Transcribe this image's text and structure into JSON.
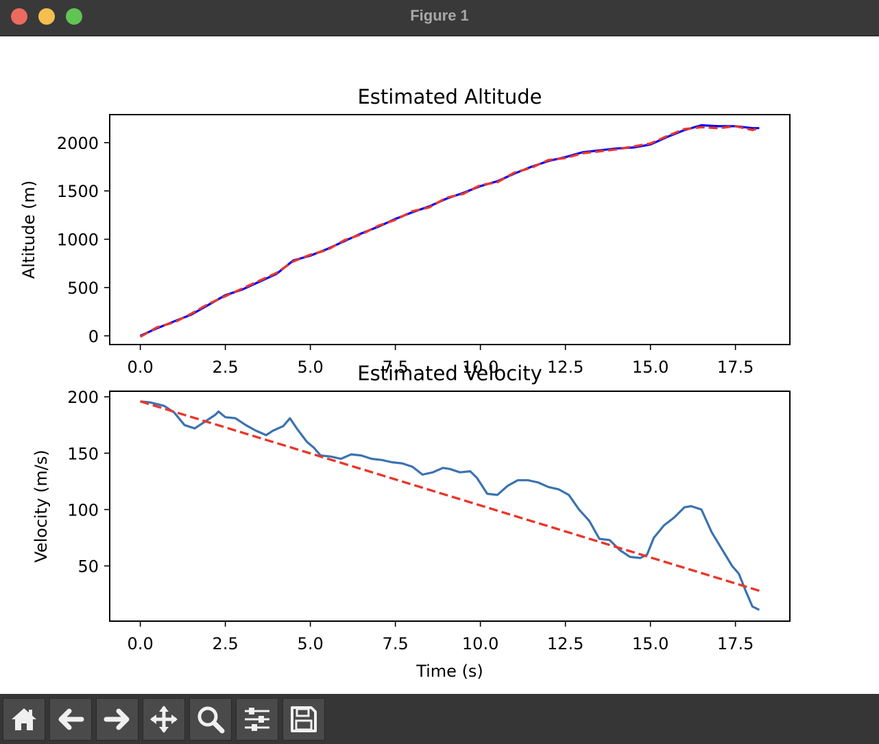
{
  "window": {
    "title": "Figure 1"
  },
  "toolbar": {
    "buttons": [
      {
        "icon": "home-icon"
      },
      {
        "icon": "back-arrow-icon"
      },
      {
        "icon": "forward-arrow-icon"
      },
      {
        "icon": "pan-move-icon"
      },
      {
        "icon": "zoom-magnifier-icon"
      },
      {
        "icon": "configure-subplots-icon"
      },
      {
        "icon": "save-floppy-icon"
      }
    ]
  },
  "colors": {
    "estimate": "#0000ff",
    "reference": "#e8372a",
    "velocity": "#3a72b0"
  },
  "chart_data": [
    {
      "type": "line",
      "title": "Estimated Altitude",
      "xlabel": "",
      "ylabel": "Altitude (m)",
      "xlim": [
        -0.9,
        19.1
      ],
      "ylim": [
        -90,
        2290
      ],
      "xticks": [
        "0.0",
        "2.5",
        "5.0",
        "7.5",
        "10.0",
        "12.5",
        "15.0",
        "17.5"
      ],
      "yticks": [
        "0",
        "500",
        "1000",
        "1500",
        "2000"
      ],
      "xtick_values": [
        0,
        2.5,
        5,
        7.5,
        10,
        12.5,
        15,
        17.5
      ],
      "ytick_values": [
        0,
        500,
        1000,
        1500,
        2000
      ],
      "series": [
        {
          "style": "solid",
          "color": "#0000ff",
          "x": [
            0,
            0.5,
            1,
            1.5,
            2,
            2.5,
            3,
            3.5,
            4,
            4.5,
            5,
            5.5,
            6,
            6.5,
            7,
            7.5,
            8,
            8.5,
            9,
            9.5,
            10,
            10.5,
            11,
            11.5,
            12,
            12.5,
            13,
            13.5,
            14,
            14.5,
            15,
            15.5,
            16,
            16.5,
            17,
            17.5,
            18,
            18.2
          ],
          "y": [
            0,
            80,
            150,
            220,
            320,
            420,
            480,
            560,
            640,
            780,
            830,
            900,
            980,
            1060,
            1130,
            1210,
            1280,
            1340,
            1420,
            1480,
            1550,
            1600,
            1680,
            1750,
            1810,
            1850,
            1900,
            1920,
            1940,
            1950,
            1980,
            2060,
            2130,
            2180,
            2170,
            2170,
            2150,
            2150
          ]
        },
        {
          "style": "dashed",
          "color": "#e8372a",
          "x": [
            0,
            0.5,
            1,
            1.5,
            2,
            2.5,
            3,
            3.5,
            4,
            4.5,
            5,
            5.5,
            6,
            6.5,
            7,
            7.5,
            8,
            8.5,
            9,
            9.5,
            10,
            10.5,
            11,
            11.5,
            12,
            12.5,
            13,
            13.5,
            14,
            14.5,
            15,
            15.5,
            16,
            16.5,
            17,
            17.5,
            18,
            18.2
          ],
          "y": [
            -10,
            90,
            140,
            230,
            330,
            410,
            490,
            570,
            650,
            770,
            840,
            890,
            990,
            1050,
            1140,
            1200,
            1290,
            1330,
            1430,
            1470,
            1560,
            1590,
            1690,
            1740,
            1820,
            1840,
            1890,
            1910,
            1930,
            1960,
            1990,
            2070,
            2140,
            2160,
            2150,
            2170,
            2130,
            2150
          ]
        }
      ]
    },
    {
      "type": "line",
      "title": "Estimated Velocity",
      "xlabel": "Time (s)",
      "ylabel": "Velocity (m/s)",
      "xlim": [
        -0.9,
        19.1
      ],
      "ylim": [
        1,
        205
      ],
      "xticks": [
        "0.0",
        "2.5",
        "5.0",
        "7.5",
        "10.0",
        "12.5",
        "15.0",
        "17.5"
      ],
      "yticks": [
        "50",
        "100",
        "150",
        "200"
      ],
      "xtick_values": [
        0,
        2.5,
        5,
        7.5,
        10,
        12.5,
        15,
        17.5
      ],
      "ytick_values": [
        50,
        100,
        150,
        200
      ],
      "series": [
        {
          "style": "solid",
          "color": "#3a72b0",
          "x": [
            0,
            0.3,
            0.7,
            1,
            1.3,
            1.6,
            1.9,
            2.2,
            2.3,
            2.5,
            2.8,
            3.1,
            3.4,
            3.7,
            3.9,
            4.2,
            4.4,
            4.6,
            4.9,
            5.1,
            5.3,
            5.6,
            5.9,
            6.2,
            6.5,
            6.8,
            7.1,
            7.4,
            7.7,
            8.0,
            8.3,
            8.6,
            8.9,
            9.1,
            9.4,
            9.7,
            9.9,
            10.2,
            10.5,
            10.8,
            11.1,
            11.4,
            11.7,
            12.0,
            12.3,
            12.6,
            12.9,
            13.2,
            13.5,
            13.8,
            14.1,
            14.4,
            14.7,
            14.9,
            15.1,
            15.4,
            15.7,
            16.0,
            16.2,
            16.5,
            16.8,
            17.1,
            17.4,
            17.6,
            17.8,
            18.0,
            18.2
          ],
          "y": [
            196,
            195,
            192,
            186,
            175,
            172,
            178,
            184,
            187,
            182,
            181,
            175,
            170,
            166,
            170,
            174,
            181,
            172,
            160,
            155,
            148,
            147,
            145,
            149,
            148,
            145,
            144,
            142,
            141,
            138,
            131,
            133,
            137,
            136,
            133,
            134,
            128,
            114,
            113,
            121,
            126,
            126,
            124,
            120,
            118,
            113,
            100,
            90,
            74,
            73,
            64,
            58,
            57,
            60,
            75,
            86,
            93,
            102,
            103,
            100,
            80,
            65,
            50,
            43,
            28,
            14,
            11
          ]
        },
        {
          "style": "dashed",
          "color": "#e8372a",
          "x": [
            0,
            18.2
          ],
          "y": [
            196,
            28
          ]
        }
      ]
    }
  ]
}
